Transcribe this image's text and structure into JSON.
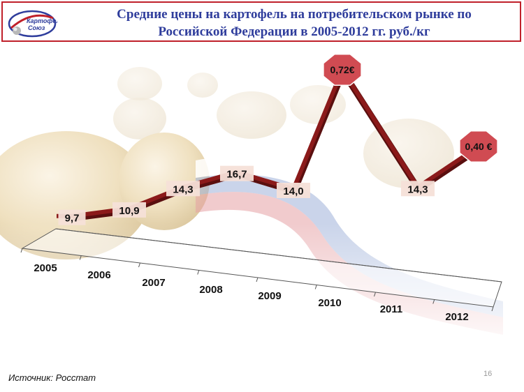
{
  "header": {
    "title_line1": "Средние цены на картофель на потребительском рынке по",
    "title_line2": "Российской Федерации в 2005-2012 гг. руб./кг",
    "logo_line1": "Картофельный",
    "logo_line2": "Союз",
    "border_color": "#c0202a",
    "title_color": "#2f3d9c"
  },
  "chart_data": {
    "type": "line",
    "categories": [
      "2005",
      "2006",
      "2007",
      "2008",
      "2009",
      "2010",
      "2011",
      "2012"
    ],
    "series": [
      {
        "values": [
          9.7,
          10.9,
          14.3,
          16.7,
          14.0,
          null,
          14.3,
          null
        ]
      }
    ],
    "data_labels": [
      "9,7",
      "10,9",
      "14,3",
      "16,7",
      "14,0",
      "0,72€",
      "14,3",
      "0,40 €"
    ],
    "line_color": "#8b1a1a",
    "label_bg_color": "#f6e0d8",
    "badge_color": "#d04b52"
  },
  "footer": {
    "source": "Источник: Росстат",
    "page_number": "16"
  }
}
